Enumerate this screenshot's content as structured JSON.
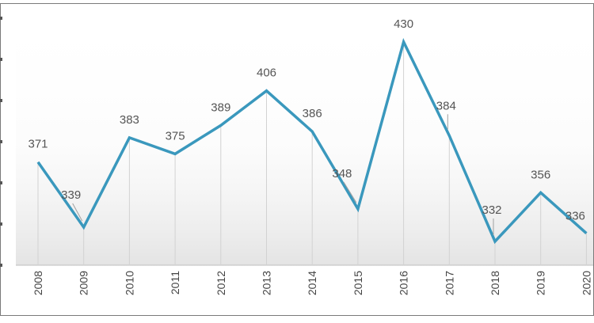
{
  "chart_data": {
    "type": "line",
    "categories": [
      "2008",
      "2009",
      "2010",
      "2011",
      "2012",
      "2013",
      "2014",
      "2015",
      "2016",
      "2017",
      "2018",
      "2019",
      "2020"
    ],
    "values": [
      371,
      339,
      383,
      375,
      389,
      406,
      386,
      348,
      430,
      384,
      332,
      356,
      336
    ],
    "data_labels": [
      "371",
      "339",
      "383",
      "375",
      "389",
      "406",
      "386",
      "348",
      "430",
      "384",
      "332",
      "356",
      "336"
    ],
    "ylim": [
      320,
      440
    ],
    "grid": false,
    "drop_lines": true,
    "line_color": "#3a98bd",
    "label_color": "#555555"
  }
}
